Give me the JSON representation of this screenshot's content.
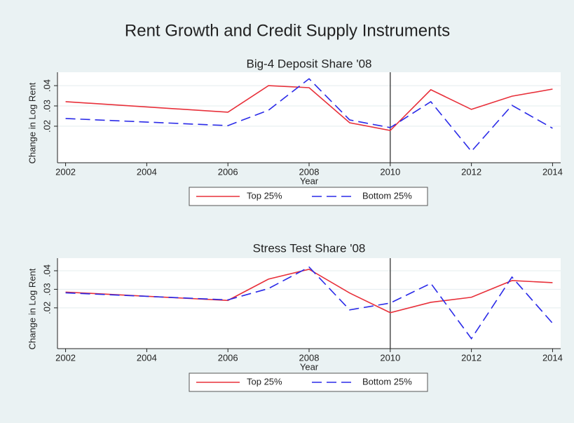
{
  "title": "Rent Growth and Credit Supply Instruments",
  "chart_data": [
    {
      "type": "line",
      "title": "Big-4 Deposit Share '08",
      "xlabel": "Year",
      "ylabel": "Change in Log Rent",
      "x": [
        2002,
        2006,
        2007,
        2008,
        2009,
        2010,
        2011,
        2012,
        2013,
        2014
      ],
      "series": [
        {
          "name": "Top 25%",
          "color": "#e8303a",
          "linestyle": "solid",
          "values": [
            0.0321,
            0.0269,
            0.04,
            0.039,
            0.0217,
            0.0179,
            0.038,
            0.0283,
            0.0348,
            0.0383
          ]
        },
        {
          "name": "Bottom 25%",
          "color": "#2a2ae8",
          "linestyle": "dashed",
          "values": [
            0.0238,
            0.0203,
            0.0279,
            0.0434,
            0.0231,
            0.0193,
            0.0321,
            0.0076,
            0.0303,
            0.019
          ]
        }
      ],
      "xlim": [
        2001.8,
        2014.2
      ],
      "xticks": [
        2002,
        2004,
        2006,
        2008,
        2010,
        2012,
        2014
      ],
      "ylim": [
        0.002,
        0.0466
      ],
      "yticks": [
        {
          "value": 0.02,
          "label": ".02"
        },
        {
          "value": 0.03,
          "label": ".03"
        },
        {
          "value": 0.04,
          "label": ".04"
        }
      ],
      "vline": 2010,
      "grid": true,
      "legend": "bottom"
    },
    {
      "type": "line",
      "title": "Stress Test Share '08",
      "xlabel": "Year",
      "ylabel": "Change in Log Rent",
      "x": [
        2002,
        2006,
        2007,
        2008,
        2009,
        2010,
        2011,
        2012,
        2013,
        2014
      ],
      "series": [
        {
          "name": "Top 25%",
          "color": "#e8303a",
          "linestyle": "solid",
          "values": [
            0.0285,
            0.024,
            0.0355,
            0.0408,
            0.028,
            0.0174,
            0.023,
            0.0257,
            0.0347,
            0.0336
          ]
        },
        {
          "name": "Bottom 25%",
          "color": "#2a2ae8",
          "linestyle": "dashed",
          "values": [
            0.0281,
            0.0243,
            0.0304,
            0.042,
            0.0189,
            0.0226,
            0.0332,
            0.0034,
            0.0366,
            0.0117
          ]
        }
      ],
      "xlim": [
        2001.8,
        2014.2
      ],
      "xticks": [
        2002,
        2004,
        2006,
        2008,
        2010,
        2012,
        2014
      ],
      "ylim": [
        -0.002,
        0.0468
      ],
      "yticks": [
        {
          "value": 0.02,
          "label": ".02"
        },
        {
          "value": 0.03,
          "label": ".03"
        },
        {
          "value": 0.04,
          "label": ".04"
        }
      ],
      "vline": 2010,
      "grid": true,
      "legend": "bottom"
    }
  ]
}
